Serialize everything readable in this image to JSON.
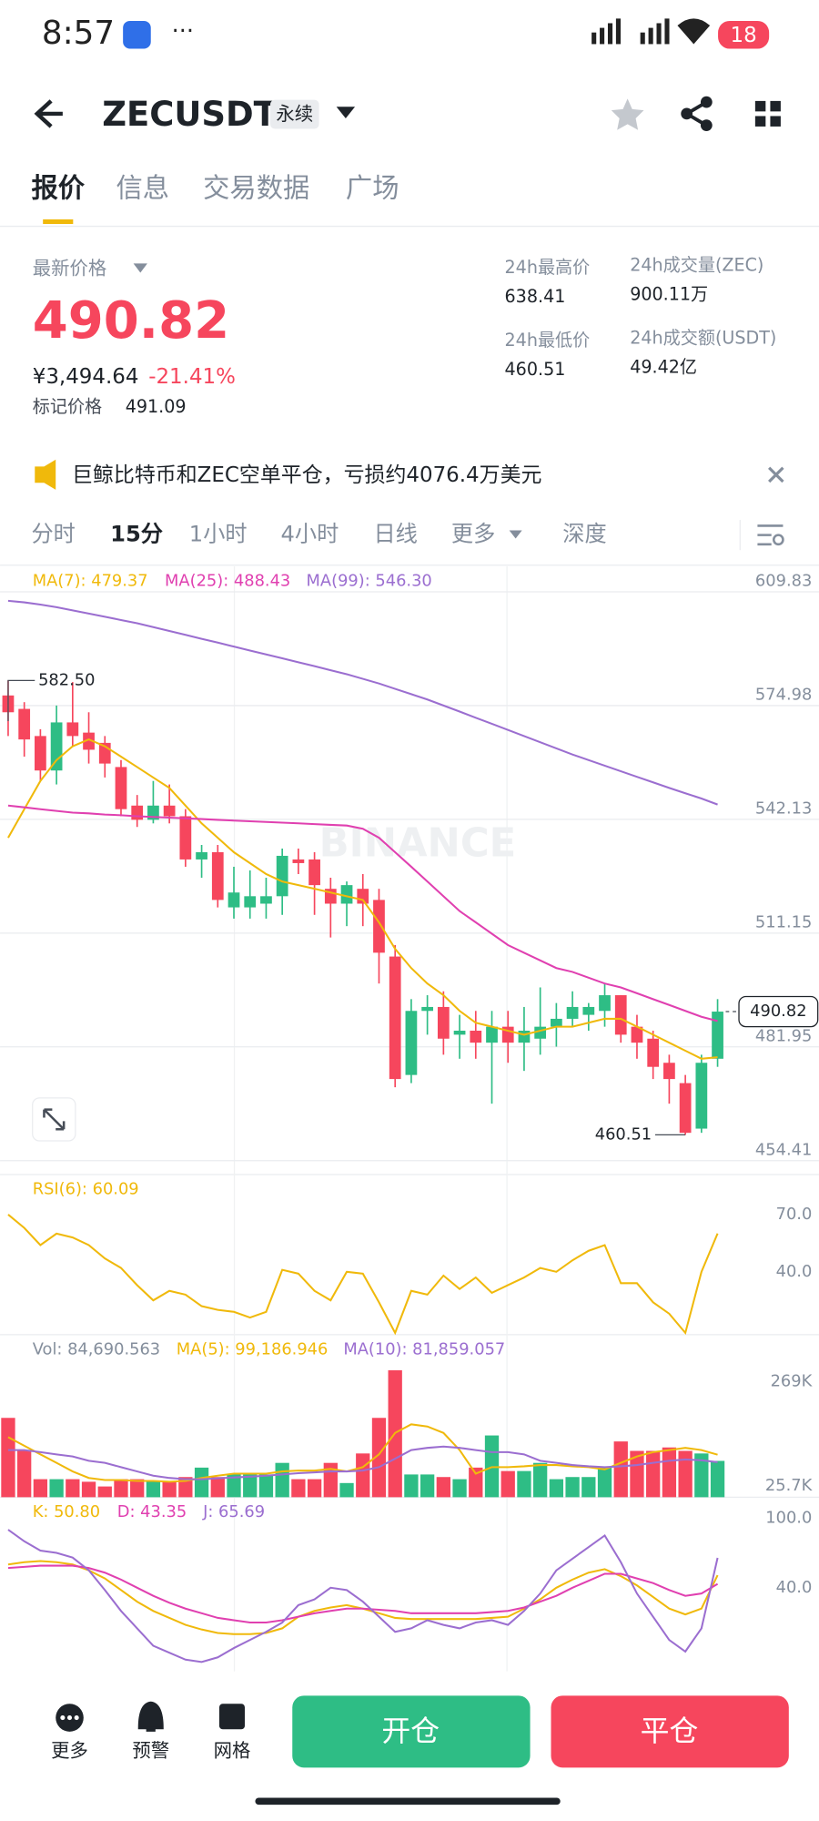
{
  "status_bar": {
    "time": "8:57",
    "battery": "18"
  },
  "header": {
    "symbol": "ZECUSDT",
    "tag": "永续"
  },
  "tabs": [
    "报价",
    "信息",
    "交易数据",
    "广场"
  ],
  "price": {
    "label": "最新价格",
    "last": "490.82",
    "cny": "¥3,494.64",
    "change": "-21.41%",
    "mark_label": "标记价格",
    "mark": "491.09"
  },
  "stats": [
    {
      "label": "24h最高价",
      "value": "638.41"
    },
    {
      "label": "24h成交量(ZEC)",
      "value": "900.11万"
    },
    {
      "label": "24h最低价",
      "value": "460.51"
    },
    {
      "label": "24h成交额(USDT)",
      "value": "49.42亿"
    }
  ],
  "news": "巨鲸比特币和ZEC空单平仓，亏损约4076.4万美元",
  "intervals": [
    "分时",
    "15分",
    "1小时",
    "4小时",
    "日线",
    "更多",
    "深度"
  ],
  "chart_data": [
    {
      "type": "candlestick",
      "watermark": "BINANCE",
      "log_scale": true,
      "grid": true,
      "ylim": [
        451.7,
        617.9
      ],
      "yticks": [
        609.83,
        574.98,
        542.13,
        511.15,
        481.95,
        454.41
      ],
      "up_color": "#2ebd85",
      "down_color": "#f6465d",
      "ohlc": [
        [
          578,
          582.5,
          566,
          573
        ],
        [
          574,
          576,
          560,
          565
        ],
        [
          566,
          568,
          553,
          556
        ],
        [
          556,
          575,
          552,
          570
        ],
        [
          570,
          582,
          563,
          566
        ],
        [
          567,
          573,
          558,
          562
        ],
        [
          564,
          566,
          554,
          558
        ],
        [
          557,
          559,
          543,
          545
        ],
        [
          546,
          549,
          540,
          542
        ],
        [
          542,
          553,
          541,
          546
        ],
        [
          546,
          552,
          541,
          543
        ],
        [
          543,
          545,
          529,
          531
        ],
        [
          531,
          535,
          526,
          533
        ],
        [
          533,
          535,
          518,
          520
        ],
        [
          518,
          529,
          515,
          522
        ],
        [
          518,
          528,
          515,
          521
        ],
        [
          519,
          526,
          515,
          521
        ],
        [
          521,
          534,
          516,
          532
        ],
        [
          531,
          534,
          527,
          530
        ],
        [
          531,
          533,
          516,
          524
        ],
        [
          523,
          526,
          510,
          519
        ],
        [
          519,
          525,
          513,
          524
        ],
        [
          523,
          527,
          513,
          519
        ],
        [
          520,
          523,
          498,
          506
        ],
        [
          505,
          508,
          472,
          474
        ],
        [
          475,
          494,
          473,
          491
        ],
        [
          491,
          495,
          485,
          492
        ],
        [
          492,
          496,
          480,
          484
        ],
        [
          485,
          490,
          479,
          486
        ],
        [
          486,
          491,
          479,
          483
        ],
        [
          483,
          491,
          468,
          487
        ],
        [
          487,
          491,
          478,
          483
        ],
        [
          483,
          492,
          476,
          486
        ],
        [
          484,
          497,
          480,
          487
        ],
        [
          487,
          493,
          482,
          489
        ],
        [
          489,
          496,
          487,
          492
        ],
        [
          490,
          493,
          486,
          492
        ],
        [
          491,
          498,
          487,
          495
        ],
        [
          495,
          495,
          483,
          485
        ],
        [
          487,
          490,
          479,
          483
        ],
        [
          484,
          486,
          474,
          477
        ],
        [
          478,
          480,
          468,
          474
        ],
        [
          473,
          475,
          460.51,
          461
        ],
        [
          462,
          480,
          461,
          478
        ],
        [
          479,
          494,
          477,
          490.82
        ]
      ],
      "series": [
        {
          "name": "MA(7): 479.37",
          "color": "#f0b90b",
          "values": [
            537,
            545,
            553,
            559,
            563,
            565,
            563,
            560,
            557,
            554,
            551,
            546,
            541,
            537,
            533,
            530,
            527,
            525,
            524,
            523,
            522,
            521,
            520,
            514,
            507,
            502,
            498,
            495,
            491,
            488,
            487,
            486,
            485,
            486,
            487,
            487,
            488,
            489,
            489,
            487,
            485,
            483,
            481,
            479,
            479.37
          ]
        },
        {
          "name": "MA(25): 488.43",
          "color": "#e040b0",
          "values": [
            546,
            545.5,
            545,
            544.5,
            544,
            543.8,
            543.5,
            543.3,
            543,
            542.8,
            542.6,
            542.4,
            542.2,
            542,
            541.8,
            541.6,
            541.4,
            541.2,
            541,
            540.8,
            540.6,
            540.4,
            539.5,
            537,
            533,
            529,
            525,
            521,
            517,
            514,
            511,
            508,
            506,
            504,
            502,
            501,
            499.5,
            498,
            497,
            495.5,
            494,
            492.5,
            491,
            489.5,
            488.43
          ]
        },
        {
          "name": "MA(99): 546.30",
          "color": "#9b6ed0",
          "values": [
            607,
            606.5,
            605.8,
            605,
            604,
            603,
            602,
            601,
            600,
            598.8,
            597.6,
            596.4,
            595.2,
            594,
            592.8,
            591.6,
            590.4,
            589.2,
            588,
            586.8,
            585.6,
            584.4,
            583,
            581.6,
            580,
            578.4,
            576.8,
            575,
            573.2,
            571.4,
            569.6,
            567.8,
            566,
            564.2,
            562.4,
            560.6,
            559,
            557.4,
            555.8,
            554.2,
            552.6,
            551,
            549.5,
            548,
            546.3
          ]
        }
      ],
      "annotations": [
        {
          "value": 582.5,
          "label": "582.50"
        },
        {
          "value": 460.51,
          "label": "460.51"
        }
      ],
      "last_price": 490.82
    },
    {
      "type": "line",
      "ylim": [
        7,
        91
      ],
      "yticks": [
        {
          "value": 70,
          "label": "70.0"
        },
        {
          "value": 40,
          "label": "40.0"
        }
      ],
      "series": [
        {
          "name": "RSI(6): 60.09",
          "color": "#f0b90b",
          "values": [
            70,
            63,
            54,
            60,
            58,
            54,
            47,
            42,
            33,
            25,
            30,
            28,
            22,
            20,
            19,
            16,
            19,
            41,
            39,
            30,
            25,
            40,
            39,
            24,
            8,
            30,
            28,
            38,
            31,
            37,
            29,
            33,
            37,
            42,
            40,
            46,
            51,
            54,
            34,
            34,
            24,
            18,
            8,
            40,
            60.09
          ]
        }
      ]
    },
    {
      "type": "bar",
      "ylim": [
        0,
        379000
      ],
      "yticks": [
        {
          "value": 269000,
          "label": "269K"
        },
        {
          "value": 25700,
          "label": "25.7K"
        }
      ],
      "series": [
        {
          "name": "Vol: 84,690.563",
          "color": "#848e9c",
          "values": [
            185000,
            108000,
            42000,
            42000,
            42000,
            36000,
            25000,
            42000,
            42000,
            36000,
            36000,
            47000,
            69000,
            47000,
            53000,
            53000,
            53000,
            80000,
            42000,
            42000,
            80000,
            33000,
            102000,
            185000,
            296000,
            53000,
            53000,
            47000,
            42000,
            69000,
            144000,
            61000,
            61000,
            80000,
            42000,
            47000,
            47000,
            69000,
            130000,
            108000,
            108000,
            116000,
            108000,
            102000,
            84690.563
          ]
        },
        {
          "name": "MA(5): 99,186.946",
          "color": "#f0b90b",
          "values": [
            140000,
            120000,
            100000,
            80000,
            60000,
            45000,
            40000,
            40000,
            38000,
            38000,
            36000,
            38000,
            45000,
            50000,
            55000,
            55000,
            55000,
            60000,
            62000,
            62000,
            66000,
            60000,
            70000,
            100000,
            150000,
            170000,
            165000,
            150000,
            110000,
            55000,
            70000,
            70000,
            72000,
            75000,
            75000,
            72000,
            70000,
            65000,
            80000,
            95000,
            105000,
            110000,
            115000,
            110000,
            99186.946
          ]
        },
        {
          "name": "MA(10): 81,859.057",
          "color": "#9b6ed0",
          "values": [
            110000,
            110000,
            105000,
            100000,
            95000,
            85000,
            80000,
            70000,
            60000,
            50000,
            45000,
            42000,
            42000,
            44000,
            46000,
            48000,
            50000,
            53000,
            56000,
            58000,
            60000,
            60000,
            62000,
            70000,
            90000,
            110000,
            115000,
            118000,
            115000,
            110000,
            105000,
            105000,
            100000,
            85000,
            80000,
            75000,
            72000,
            70000,
            72000,
            75000,
            80000,
            85000,
            88000,
            86000,
            81859.057
          ]
        }
      ]
    },
    {
      "type": "line",
      "ylim": [
        -32,
        118
      ],
      "yticks": [
        {
          "value": 100,
          "label": "100.0"
        },
        {
          "value": 40,
          "label": "40.0"
        }
      ],
      "series": [
        {
          "name": "K: 50.80",
          "color": "#f0b90b",
          "values": [
            60,
            62,
            63,
            62,
            60,
            55,
            48,
            38,
            28,
            20,
            14,
            8,
            4,
            1,
            0,
            0,
            1,
            5,
            15,
            20,
            23,
            25,
            22,
            18,
            14,
            13,
            13,
            13,
            13,
            13,
            14,
            15,
            22,
            30,
            40,
            47,
            53,
            56,
            50,
            42,
            32,
            22,
            17,
            22,
            50.8
          ]
        },
        {
          "name": "D: 43.35",
          "color": "#e040b0",
          "values": [
            57,
            58,
            59,
            59,
            59,
            57,
            53,
            47,
            40,
            33,
            27,
            22,
            18,
            14,
            12,
            10,
            10,
            12,
            15,
            18,
            20,
            22,
            22,
            21,
            20,
            18,
            18,
            18,
            18,
            18,
            19,
            20,
            23,
            28,
            33,
            40,
            46,
            52,
            52,
            48,
            44,
            38,
            33,
            35,
            43.35
          ]
        },
        {
          "name": "J: 65.69",
          "color": "#9b6ed0",
          "values": [
            90,
            80,
            72,
            70,
            66,
            55,
            38,
            20,
            5,
            -10,
            -16,
            -22,
            -24,
            -20,
            -12,
            -5,
            2,
            10,
            25,
            30,
            40,
            38,
            28,
            15,
            2,
            5,
            12,
            8,
            5,
            10,
            12,
            8,
            20,
            35,
            55,
            65,
            75,
            85,
            62,
            35,
            15,
            -5,
            -15,
            5,
            65.69
          ]
        }
      ]
    }
  ],
  "footer": {
    "buttons": [
      "更多",
      "预警",
      "网格"
    ],
    "open": "开仓",
    "close": "平仓"
  }
}
